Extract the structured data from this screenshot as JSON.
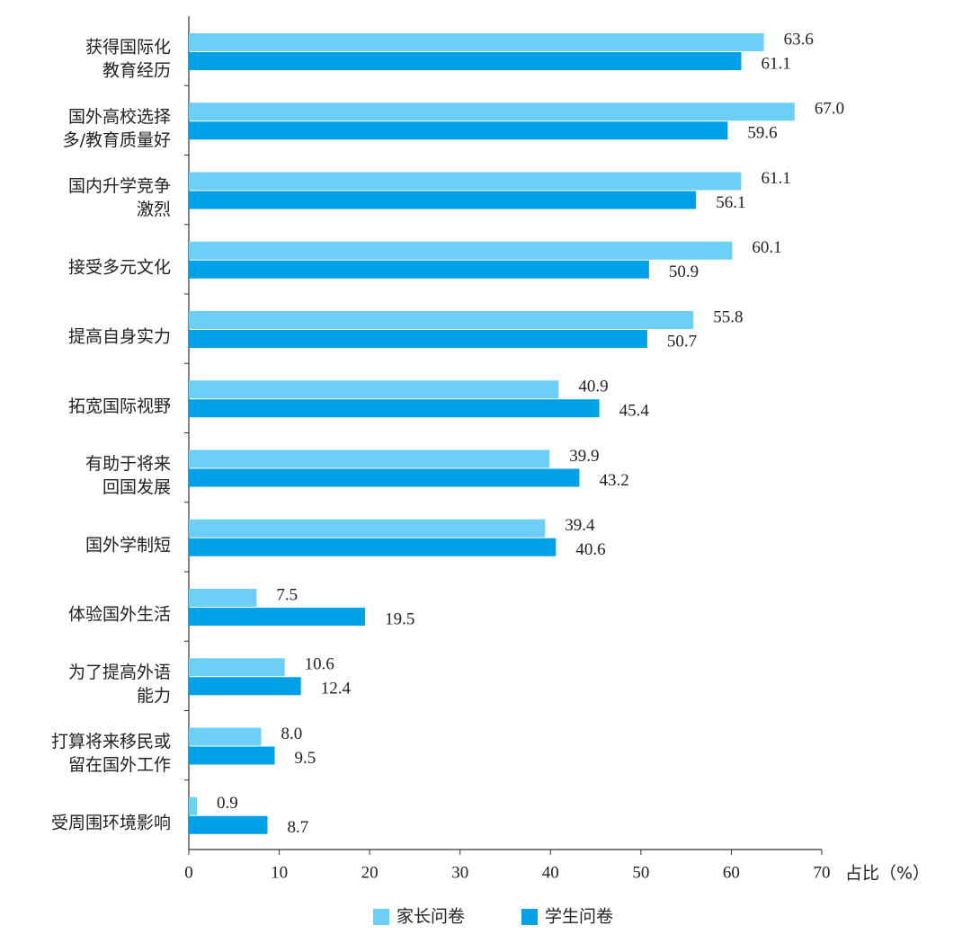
{
  "chart_data": {
    "type": "bar",
    "orientation": "horizontal",
    "categories": [
      [
        "获得国际化",
        "教育经历"
      ],
      [
        "国外高校选择",
        "多/教育质量好"
      ],
      [
        "国内升学竞争",
        "激烈"
      ],
      [
        "接受多元文化"
      ],
      [
        "提高自身实力"
      ],
      [
        "拓宽国际视野"
      ],
      [
        "有助于将来",
        "回国发展"
      ],
      [
        "国外学制短"
      ],
      [
        "体验国外生活"
      ],
      [
        "为了提高外语",
        "能力"
      ],
      [
        "打算将来移民或",
        "留在国外工作"
      ],
      [
        "受周围环境影响"
      ]
    ],
    "series": [
      {
        "name": "家长问卷",
        "color": "#6dcff6",
        "values": [
          63.6,
          67,
          61.1,
          60.1,
          55.8,
          40.9,
          39.9,
          39.4,
          7.5,
          10.6,
          8,
          0.9
        ],
        "value_labels": [
          "63.6",
          "67.0",
          "61.1",
          "60.1",
          "55.8",
          "40.9",
          "39.9",
          "39.4",
          "7.5",
          "10.6",
          "8.0",
          "0.9"
        ]
      },
      {
        "name": "学生问卷",
        "color": "#00a0e9",
        "values": [
          61.1,
          59.6,
          56.1,
          50.9,
          50.7,
          45.4,
          43.2,
          40.6,
          19.5,
          12.4,
          9.5,
          8.7
        ],
        "value_labels": [
          "61.1",
          "59.6",
          "56.1",
          "50.9",
          "50.7",
          "45.4",
          "43.2",
          "40.6",
          "19.5",
          "12.4",
          "9.5",
          "8.7"
        ]
      }
    ],
    "x_label": "占比（%）",
    "xlim": [
      0,
      70
    ],
    "xticks": [
      0,
      10,
      20,
      30,
      40,
      50,
      60,
      70
    ],
    "legend": "bottom"
  }
}
